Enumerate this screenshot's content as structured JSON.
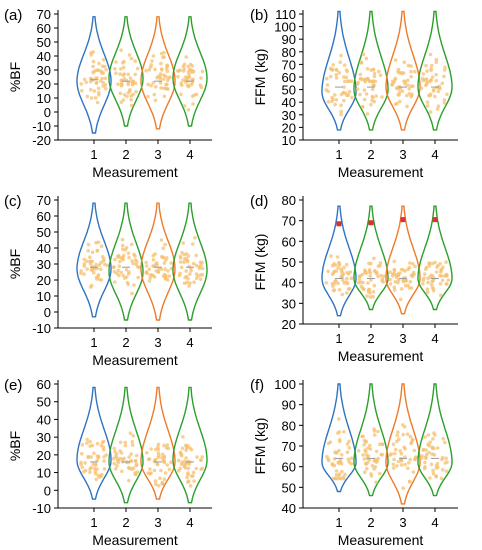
{
  "chart_data": [
    {
      "panel_label": "(a)",
      "type": "violin",
      "ylabel": "%BF",
      "xlabel": "Measurement",
      "categories": [
        "1",
        "2",
        "3",
        "4"
      ],
      "ylim": [
        -20,
        70
      ],
      "yticks": [
        -20,
        -10,
        0,
        10,
        20,
        30,
        40,
        50,
        60,
        70
      ],
      "violins": [
        {
          "color": "#2f74c0",
          "min": -15,
          "max": 68,
          "q1": 14,
          "median": 23,
          "q3": 34,
          "mode": 22
        },
        {
          "color": "#2aa02a",
          "min": -10,
          "max": 68,
          "q1": 14,
          "median": 22,
          "q3": 33,
          "mode": 24
        },
        {
          "color": "#ee7a2a",
          "min": -12,
          "max": 68,
          "q1": 14,
          "median": 22,
          "q3": 33,
          "mode": 22
        },
        {
          "color": "#2aa02a",
          "min": -10,
          "max": 68,
          "q1": 14,
          "median": 22,
          "q3": 33,
          "mode": 24
        }
      ],
      "markers": []
    },
    {
      "panel_label": "(b)",
      "type": "violin",
      "ylabel": "FFM (kg)",
      "xlabel": "Measurement",
      "categories": [
        "1",
        "2",
        "3",
        "4"
      ],
      "ylim": [
        10,
        110
      ],
      "yticks": [
        10,
        20,
        30,
        40,
        50,
        60,
        70,
        80,
        90,
        100,
        110
      ],
      "violins": [
        {
          "color": "#2f74c0",
          "min": 18,
          "max": 112,
          "q1": 42,
          "median": 52,
          "q3": 65,
          "mode": 48
        },
        {
          "color": "#2aa02a",
          "min": 18,
          "max": 112,
          "q1": 42,
          "median": 52,
          "q3": 65,
          "mode": 50
        },
        {
          "color": "#ee7a2a",
          "min": 18,
          "max": 112,
          "q1": 42,
          "median": 52,
          "q3": 65,
          "mode": 52
        },
        {
          "color": "#2aa02a",
          "min": 18,
          "max": 112,
          "q1": 42,
          "median": 52,
          "q3": 65,
          "mode": 52
        }
      ],
      "markers": []
    },
    {
      "panel_label": "(c)",
      "type": "violin",
      "ylabel": "%BF",
      "xlabel": "Measurement",
      "categories": [
        "1",
        "2",
        "3",
        "4"
      ],
      "ylim": [
        -10,
        70
      ],
      "yticks": [
        -10,
        0,
        10,
        20,
        30,
        40,
        50,
        60,
        70
      ],
      "violins": [
        {
          "color": "#2f74c0",
          "min": -3,
          "max": 68,
          "q1": 22,
          "median": 28,
          "q3": 36,
          "mode": 27
        },
        {
          "color": "#2aa02a",
          "min": -5,
          "max": 68,
          "q1": 22,
          "median": 28,
          "q3": 36,
          "mode": 25
        },
        {
          "color": "#ee7a2a",
          "min": -5,
          "max": 68,
          "q1": 22,
          "median": 28,
          "q3": 36,
          "mode": 27
        },
        {
          "color": "#2aa02a",
          "min": -5,
          "max": 68,
          "q1": 22,
          "median": 28,
          "q3": 36,
          "mode": 26
        }
      ],
      "markers": []
    },
    {
      "panel_label": "(d)",
      "type": "violin",
      "ylabel": "FFM (kg)",
      "xlabel": "Measurement",
      "categories": [
        "1",
        "2",
        "3",
        "4"
      ],
      "ylim": [
        20,
        80
      ],
      "yticks": [
        20,
        30,
        40,
        50,
        60,
        70,
        80
      ],
      "violins": [
        {
          "color": "#2f74c0",
          "min": 24,
          "max": 77,
          "q1": 38,
          "median": 42,
          "q3": 47,
          "mode": 42
        },
        {
          "color": "#2aa02a",
          "min": 27,
          "max": 77,
          "q1": 38,
          "median": 42,
          "q3": 47,
          "mode": 42
        },
        {
          "color": "#ee7a2a",
          "min": 25,
          "max": 77,
          "q1": 38,
          "median": 42,
          "q3": 47,
          "mode": 42
        },
        {
          "color": "#2aa02a",
          "min": 27,
          "max": 77,
          "q1": 38,
          "median": 42,
          "q3": 47,
          "mode": 42
        }
      ],
      "markers": [
        {
          "category": "1",
          "value": 68.5,
          "color": "#e03030"
        },
        {
          "category": "2",
          "value": 69,
          "color": "#e03030"
        },
        {
          "category": "3",
          "value": 70.5,
          "color": "#e03030"
        },
        {
          "category": "4",
          "value": 70.5,
          "color": "#e03030"
        }
      ]
    },
    {
      "panel_label": "(e)",
      "type": "violin",
      "ylabel": "%BF",
      "xlabel": "Measurement",
      "categories": [
        "1",
        "2",
        "3",
        "4"
      ],
      "ylim": [
        -10,
        60
      ],
      "yticks": [
        -10,
        0,
        10,
        20,
        30,
        40,
        50,
        60
      ],
      "violins": [
        {
          "color": "#2f74c0",
          "min": -5,
          "max": 58,
          "q1": 10,
          "median": 16,
          "q3": 23,
          "mode": 17
        },
        {
          "color": "#2aa02a",
          "min": -7,
          "max": 58,
          "q1": 10,
          "median": 16,
          "q3": 23,
          "mode": 16
        },
        {
          "color": "#ee7a2a",
          "min": -5,
          "max": 58,
          "q1": 10,
          "median": 16,
          "q3": 23,
          "mode": 16
        },
        {
          "color": "#2aa02a",
          "min": -7,
          "max": 58,
          "q1": 10,
          "median": 16,
          "q3": 23,
          "mode": 17
        }
      ],
      "markers": []
    },
    {
      "panel_label": "(f)",
      "type": "violin",
      "ylabel": "FFM (kg)",
      "xlabel": "Measurement",
      "categories": [
        "1",
        "2",
        "3",
        "4"
      ],
      "ylim": [
        40,
        100
      ],
      "yticks": [
        40,
        50,
        60,
        70,
        80,
        90,
        100
      ],
      "violins": [
        {
          "color": "#2f74c0",
          "min": 48,
          "max": 100,
          "q1": 58,
          "median": 64,
          "q3": 72,
          "mode": 62
        },
        {
          "color": "#2aa02a",
          "min": 46,
          "max": 100,
          "q1": 58,
          "median": 64,
          "q3": 72,
          "mode": 62
        },
        {
          "color": "#ee7a2a",
          "min": 42,
          "max": 100,
          "q1": 58,
          "median": 64,
          "q3": 72,
          "mode": 62
        },
        {
          "color": "#2aa02a",
          "min": 46,
          "max": 100,
          "q1": 58,
          "median": 64,
          "q3": 72,
          "mode": 62
        }
      ],
      "markers": []
    }
  ]
}
